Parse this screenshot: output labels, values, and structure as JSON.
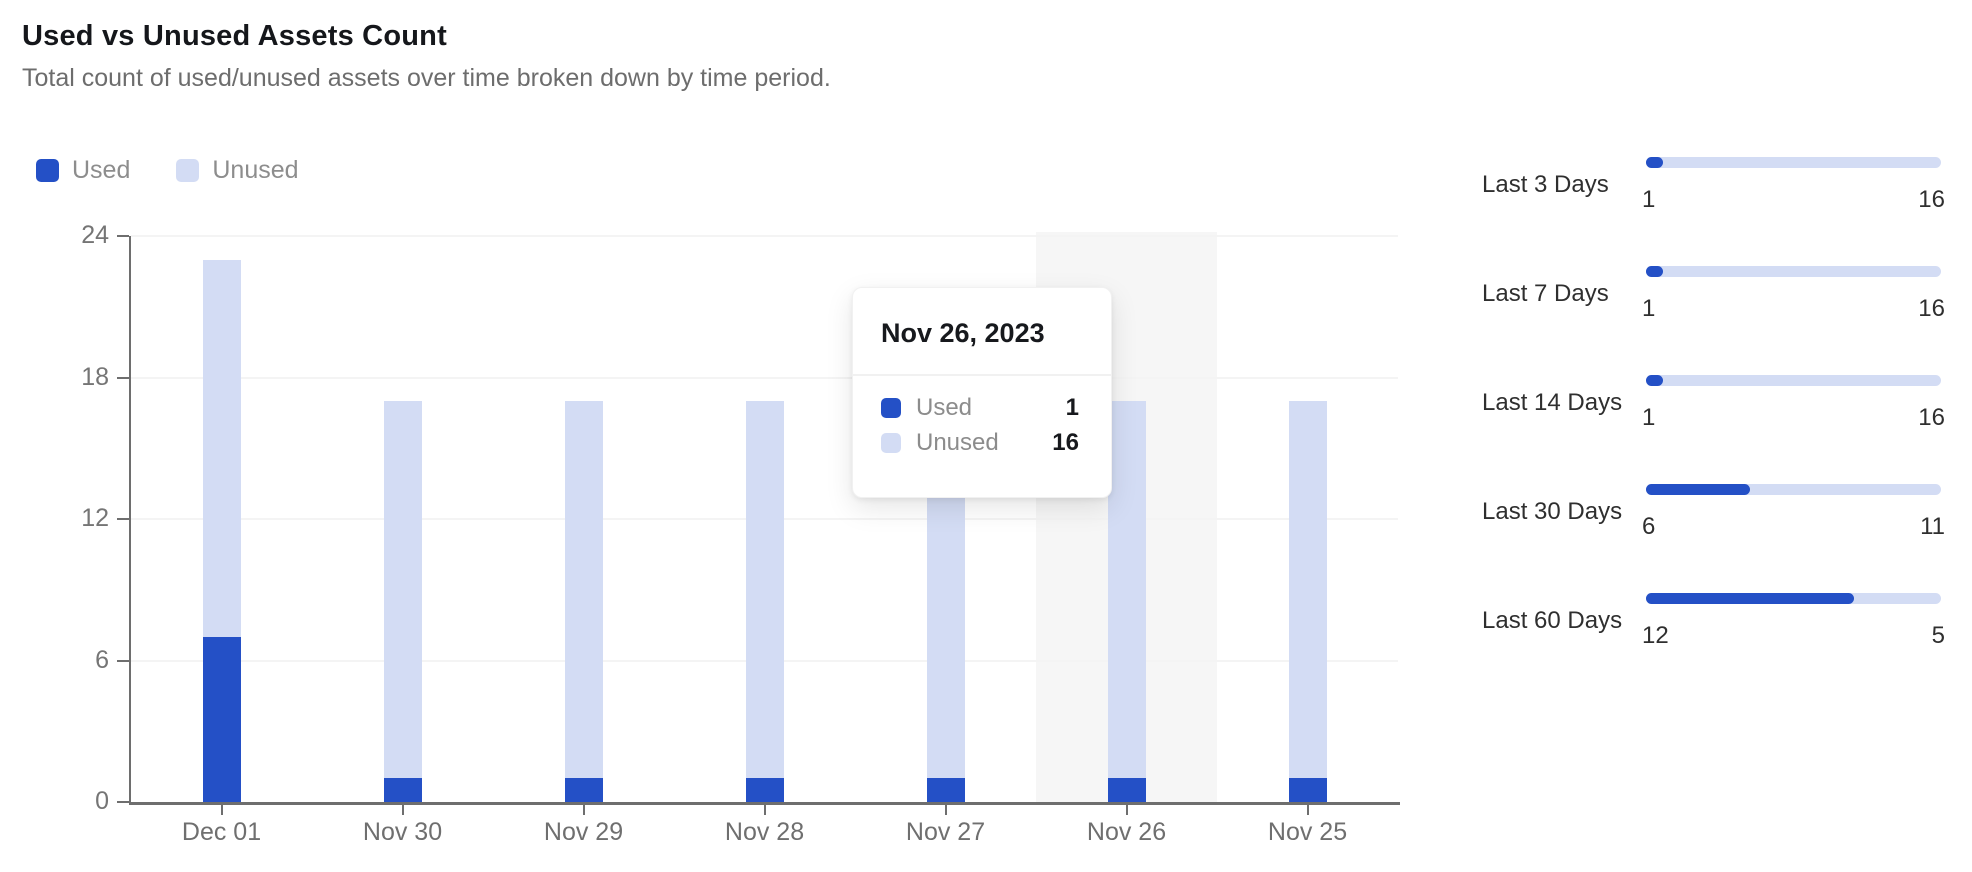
{
  "header": {
    "title": "Used vs Unused Assets Count",
    "subtitle": "Total count of used/unused assets over time broken down by time period."
  },
  "colors": {
    "used": "#2450c6",
    "unused": "#d3dcf4",
    "hover_band": "#f6f6f6",
    "axis": "#6e6e6e",
    "grid": "#f4f4f4"
  },
  "legend": [
    {
      "label": "Used",
      "color_key": "used"
    },
    {
      "label": "Unused",
      "color_key": "unused"
    }
  ],
  "chart_data": {
    "type": "bar",
    "stacked": true,
    "title": "Used vs Unused Assets Count",
    "categories": [
      "Dec 01",
      "Nov 30",
      "Nov 29",
      "Nov 28",
      "Nov 27",
      "Nov 26",
      "Nov 25"
    ],
    "series": [
      {
        "name": "Used",
        "color_key": "used",
        "values": [
          7,
          1,
          1,
          1,
          1,
          1,
          1
        ]
      },
      {
        "name": "Unused",
        "color_key": "unused",
        "values": [
          16,
          16,
          16,
          16,
          16,
          16,
          16
        ]
      }
    ],
    "ylim": [
      0,
      24
    ],
    "yticks": [
      0,
      6,
      12,
      18,
      24
    ],
    "grid": true,
    "legend_position": "top-left",
    "highlighted_category": "Nov 26"
  },
  "tooltip": {
    "title": "Nov 26, 2023",
    "rows": [
      {
        "label": "Used",
        "value": "1",
        "color_key": "used"
      },
      {
        "label": "Unused",
        "value": "16",
        "color_key": "unused"
      }
    ]
  },
  "side_panel": {
    "rows": [
      {
        "label": "Last 3 Days",
        "used": 1,
        "unused": 16
      },
      {
        "label": "Last 7 Days",
        "used": 1,
        "unused": 16
      },
      {
        "label": "Last 14 Days",
        "used": 1,
        "unused": 16
      },
      {
        "label": "Last 30 Days",
        "used": 6,
        "unused": 11
      },
      {
        "label": "Last 60 Days",
        "used": 12,
        "unused": 5
      }
    ]
  }
}
